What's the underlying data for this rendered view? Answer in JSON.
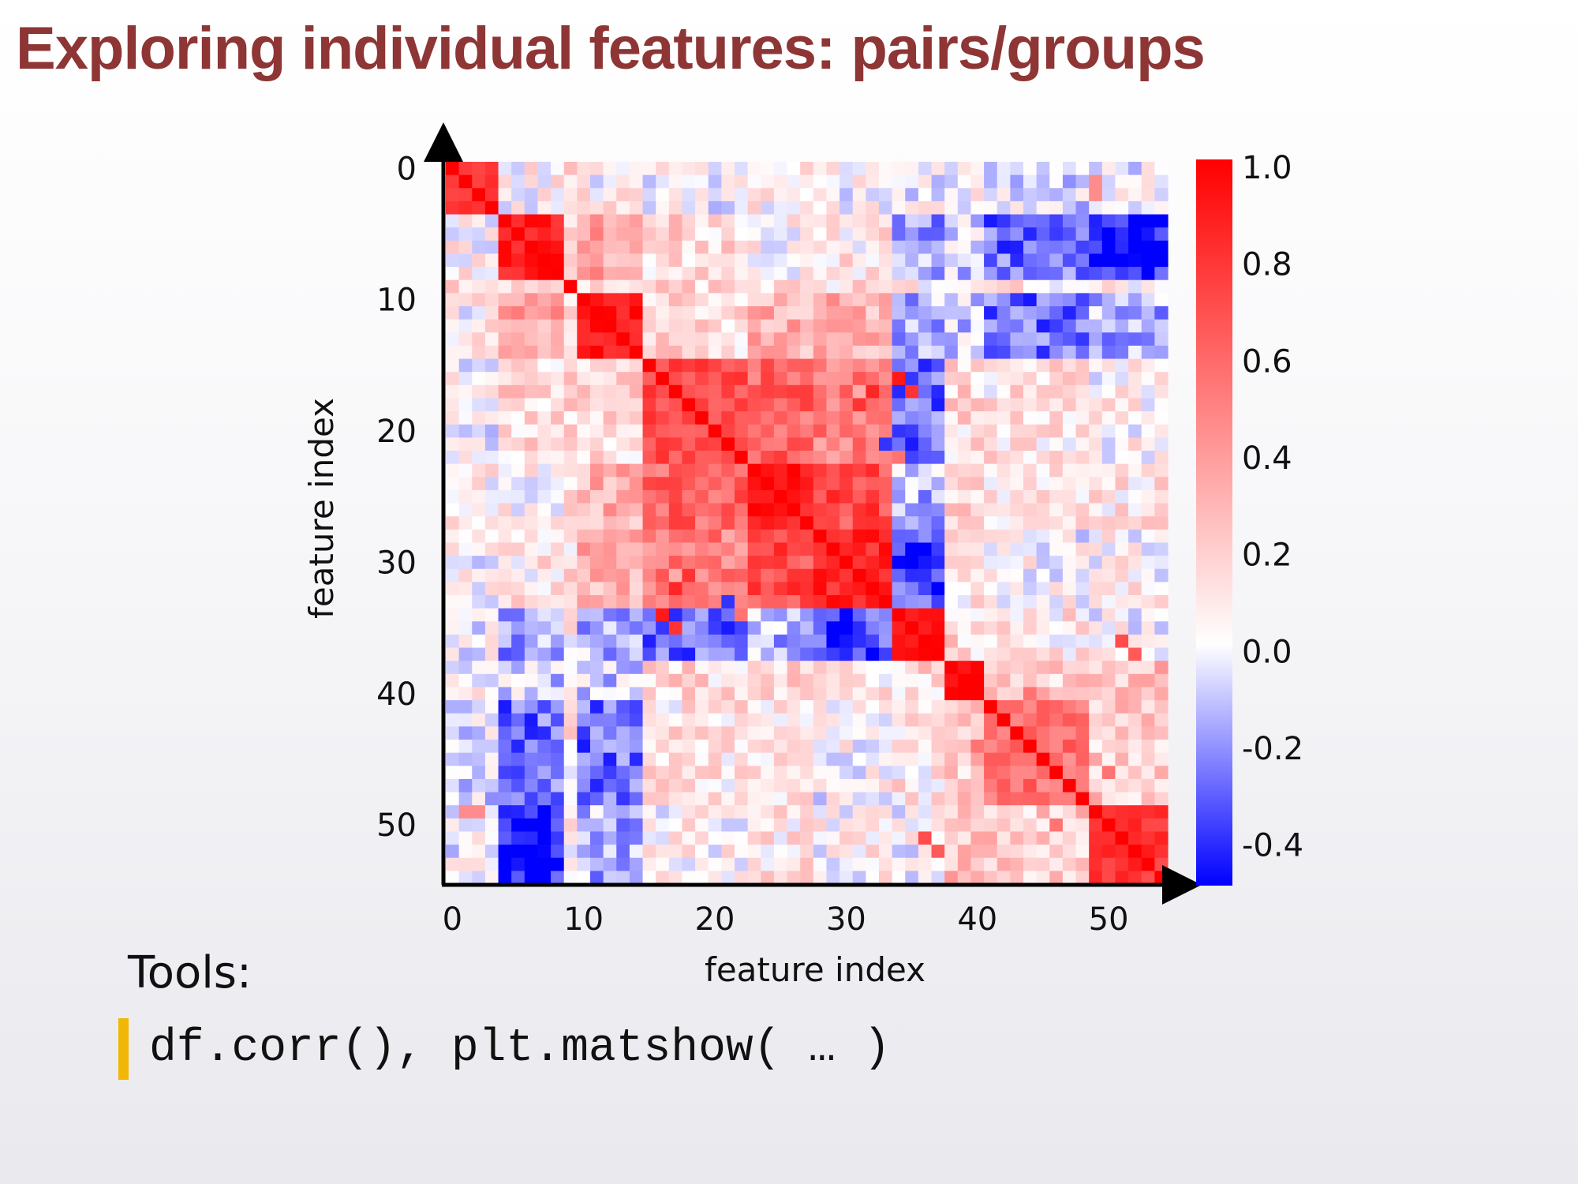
{
  "slide": {
    "title": "Exploring individual features: pairs/groups",
    "tools_label": "Tools:",
    "code": "df.corr(), plt.matshow( … )"
  },
  "chart_data": {
    "type": "heatmap",
    "n_features": 55,
    "xlabel": "feature index",
    "ylabel": "feature index",
    "x_ticks": [
      0,
      10,
      20,
      30,
      40,
      50
    ],
    "y_ticks": [
      0,
      10,
      20,
      30,
      40,
      50
    ],
    "x_tick_labels": [
      "0",
      "10",
      "20",
      "30",
      "40",
      "50"
    ],
    "y_tick_labels": [
      "0",
      "10",
      "20",
      "30",
      "40",
      "50"
    ],
    "colorbar": {
      "range": [
        -0.5,
        1.0
      ],
      "ticks": [
        1.0,
        0.8,
        0.6,
        0.4,
        0.2,
        0.0,
        -0.2,
        -0.4
      ],
      "tick_labels": [
        "1.0",
        "0.8",
        "0.6",
        "0.4",
        "0.2",
        "0.0",
        "-0.2",
        "-0.4"
      ],
      "colormap": "bwr",
      "colors": {
        "low": "#0000ff",
        "mid": "#ffffff",
        "high": "#ff0000"
      }
    },
    "groups": [
      {
        "start": 0,
        "end": 3,
        "within": 0.85,
        "offset": 0.1
      },
      {
        "start": 4,
        "end": 8,
        "within": 0.9,
        "offset": -0.05
      },
      {
        "start": 9,
        "end": 9,
        "within": 1.0,
        "offset": 0.15
      },
      {
        "start": 10,
        "end": 14,
        "within": 0.92,
        "offset": 0.0
      },
      {
        "start": 15,
        "end": 22,
        "within": 0.7,
        "offset": 0.15
      },
      {
        "start": 23,
        "end": 27,
        "within": 0.88,
        "offset": 0.15
      },
      {
        "start": 28,
        "end": 33,
        "within": 0.85,
        "offset": 0.1
      },
      {
        "start": 34,
        "end": 37,
        "within": 0.95,
        "offset": 0.0
      },
      {
        "start": 38,
        "end": 40,
        "within": 0.9,
        "offset": 0.05
      },
      {
        "start": 41,
        "end": 48,
        "within": 0.55,
        "offset": 0.05
      },
      {
        "start": 49,
        "end": 54,
        "within": 0.8,
        "offset": -0.1
      }
    ],
    "block_pairs": [
      {
        "a": 0,
        "b": 1,
        "value": 0.05
      },
      {
        "a": 0,
        "b": 3,
        "value": 0.05
      },
      {
        "a": 0,
        "b": 4,
        "value": 0.0
      },
      {
        "a": 0,
        "b": 5,
        "value": 0.05
      },
      {
        "a": 0,
        "b": 6,
        "value": 0.0
      },
      {
        "a": 0,
        "b": 7,
        "value": 0.0
      },
      {
        "a": 0,
        "b": 8,
        "value": 0.0
      },
      {
        "a": 0,
        "b": 9,
        "value": -0.05
      },
      {
        "a": 0,
        "b": 10,
        "value": 0.0
      },
      {
        "a": 1,
        "b": 2,
        "value": 0.2
      },
      {
        "a": 1,
        "b": 3,
        "value": 0.35
      },
      {
        "a": 1,
        "b": 4,
        "value": 0.15
      },
      {
        "a": 1,
        "b": 5,
        "value": 0.05
      },
      {
        "a": 1,
        "b": 6,
        "value": 0.1
      },
      {
        "a": 1,
        "b": 7,
        "value": -0.2
      },
      {
        "a": 1,
        "b": 8,
        "value": -0.1
      },
      {
        "a": 1,
        "b": 9,
        "value": -0.3
      },
      {
        "a": 1,
        "b": 10,
        "value": -0.45
      },
      {
        "a": 2,
        "b": 3,
        "value": 0.2
      },
      {
        "a": 3,
        "b": 4,
        "value": 0.15
      },
      {
        "a": 3,
        "b": 5,
        "value": 0.3
      },
      {
        "a": 3,
        "b": 6,
        "value": 0.3
      },
      {
        "a": 3,
        "b": 7,
        "value": -0.15
      },
      {
        "a": 3,
        "b": 8,
        "value": -0.1
      },
      {
        "a": 3,
        "b": 9,
        "value": -0.3
      },
      {
        "a": 3,
        "b": 10,
        "value": -0.15
      },
      {
        "a": 4,
        "b": 5,
        "value": 0.6
      },
      {
        "a": 4,
        "b": 6,
        "value": 0.5
      },
      {
        "a": 4,
        "b": 7,
        "value": -0.3
      },
      {
        "a": 4,
        "b": 8,
        "value": 0.15
      },
      {
        "a": 4,
        "b": 9,
        "value": 0.1
      },
      {
        "a": 4,
        "b": 10,
        "value": 0.05
      },
      {
        "a": 5,
        "b": 6,
        "value": 0.7
      },
      {
        "a": 5,
        "b": 7,
        "value": -0.15
      },
      {
        "a": 5,
        "b": 8,
        "value": 0.15
      },
      {
        "a": 5,
        "b": 9,
        "value": 0.1
      },
      {
        "a": 5,
        "b": 10,
        "value": 0.1
      },
      {
        "a": 6,
        "b": 7,
        "value": -0.35
      },
      {
        "a": 6,
        "b": 8,
        "value": 0.1
      },
      {
        "a": 6,
        "b": 9,
        "value": 0.0
      },
      {
        "a": 6,
        "b": 10,
        "value": 0.05
      },
      {
        "a": 7,
        "b": 8,
        "value": 0.15
      },
      {
        "a": 7,
        "b": 9,
        "value": 0.1
      },
      {
        "a": 7,
        "b": 10,
        "value": 0.0
      },
      {
        "a": 8,
        "b": 9,
        "value": 0.2
      },
      {
        "a": 8,
        "b": 10,
        "value": 0.25
      },
      {
        "a": 9,
        "b": 10,
        "value": 0.2
      }
    ],
    "cell_overrides": [
      {
        "row": 17,
        "col": 32,
        "value": 0.85
      },
      {
        "row": 18,
        "col": 31,
        "value": 0.8
      },
      {
        "row": 20,
        "col": 34,
        "value": -0.4
      },
      {
        "row": 21,
        "col": 35,
        "value": -0.45
      },
      {
        "row": 22,
        "col": 34,
        "value": 0.55
      },
      {
        "row": 33,
        "col": 21,
        "value": -0.4
      },
      {
        "row": 35,
        "col": 17,
        "value": 0.8
      },
      {
        "row": 16,
        "col": 34,
        "value": 0.9
      },
      {
        "row": 49,
        "col": 1,
        "value": 0.45
      },
      {
        "row": 49,
        "col": 2,
        "value": 0.45
      },
      {
        "row": 44,
        "col": 47,
        "value": 0.7
      },
      {
        "row": 42,
        "col": 45,
        "value": 0.65
      },
      {
        "row": 46,
        "col": 50,
        "value": 0.55
      },
      {
        "row": 43,
        "col": 48,
        "value": 0.6
      },
      {
        "row": 40,
        "col": 44,
        "value": 0.55
      },
      {
        "row": 51,
        "col": 36,
        "value": 0.7
      },
      {
        "row": 52,
        "col": 37,
        "value": 0.65
      }
    ]
  }
}
